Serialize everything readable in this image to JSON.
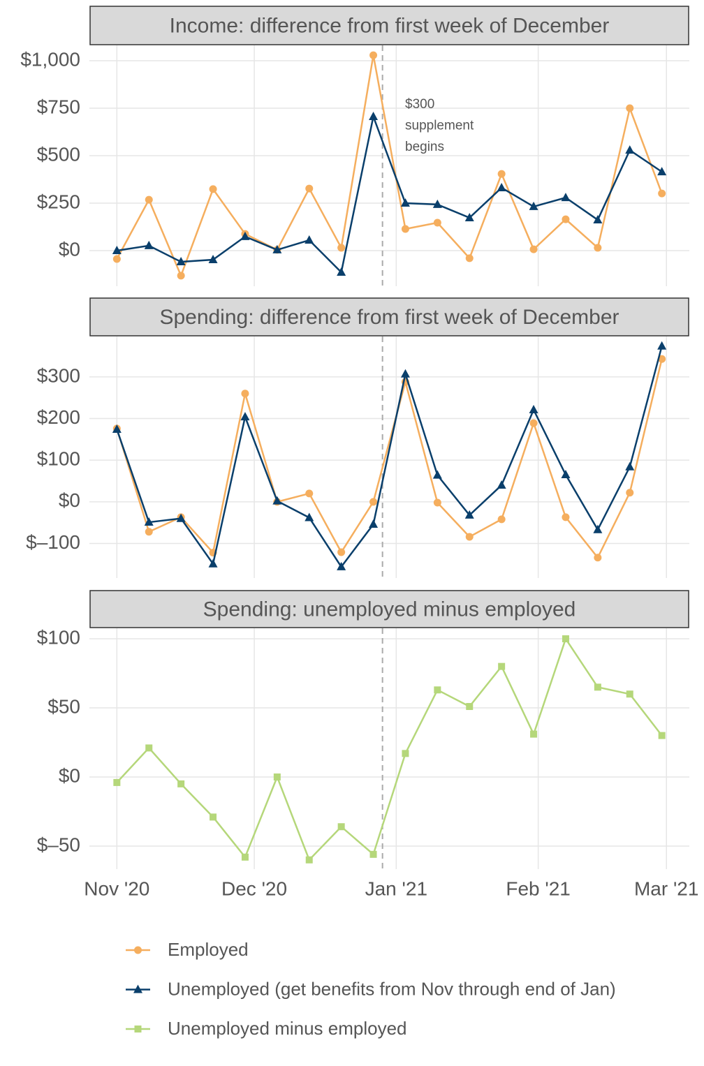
{
  "chart_data": [
    {
      "type": "line",
      "title": "Income: difference from first week of December",
      "x": [
        "2020-11-01",
        "2020-11-08",
        "2020-11-15",
        "2020-11-22",
        "2020-11-29",
        "2020-12-06",
        "2020-12-13",
        "2020-12-20",
        "2020-12-27",
        "2021-01-03",
        "2021-01-10",
        "2021-01-17",
        "2021-01-24",
        "2021-01-31",
        "2021-02-07",
        "2021-02-14",
        "2021-02-21",
        "2021-02-28"
      ],
      "xlim": [
        "2020-10-26",
        "2021-03-06"
      ],
      "ylim": [
        -187.5,
        1081
      ],
      "yticks": [
        {
          "value": 0,
          "label": "$0"
        },
        {
          "value": 250,
          "label": "$250"
        },
        {
          "value": 500,
          "label": "$500"
        },
        {
          "value": 750,
          "label": "$750"
        },
        {
          "value": 1000,
          "label": "$1,000"
        }
      ],
      "vline": "2020-12-29",
      "annotation": [
        "$300",
        "supplement",
        "begins"
      ],
      "grid": true,
      "series": [
        {
          "name": "Employed",
          "color": "#f5ae5e",
          "marker": "circle",
          "values": [
            -44,
            268,
            -132,
            324,
            88,
            4,
            327,
            15,
            1029,
            114,
            147,
            -40,
            404,
            7,
            165,
            15,
            750,
            301
          ]
        },
        {
          "name": "Unemployed (get benefits from Nov through end of Jan)",
          "color": "#0a3f6b",
          "marker": "triangle",
          "values": [
            0,
            26,
            -59,
            -48,
            74,
            4,
            55,
            -114,
            706,
            250,
            243,
            173,
            331,
            232,
            279,
            162,
            529,
            415
          ]
        }
      ]
    },
    {
      "type": "line",
      "title": "Spending: difference from first week of December",
      "x": [
        "2020-11-01",
        "2020-11-08",
        "2020-11-15",
        "2020-11-22",
        "2020-11-29",
        "2020-12-06",
        "2020-12-13",
        "2020-12-20",
        "2020-12-27",
        "2021-01-03",
        "2021-01-10",
        "2021-01-17",
        "2021-01-24",
        "2021-01-31",
        "2021-02-07",
        "2021-02-14",
        "2021-02-21",
        "2021-02-28"
      ],
      "xlim": [
        "2020-10-26",
        "2021-03-06"
      ],
      "ylim": [
        -183,
        397
      ],
      "yticks": [
        {
          "value": -100,
          "label": "$–100"
        },
        {
          "value": 0,
          "label": "$0"
        },
        {
          "value": 100,
          "label": "$100"
        },
        {
          "value": 200,
          "label": "$200"
        },
        {
          "value": 300,
          "label": "$300"
        }
      ],
      "vline": "2020-12-29",
      "grid": true,
      "series": [
        {
          "color": "#f5ae5e",
          "marker": "circle",
          "values": [
            176,
            -72,
            -37,
            -122,
            260,
            0,
            20,
            -121,
            0,
            288,
            -2,
            -84,
            -42,
            189,
            -37,
            -134,
            22,
            343
          ]
        },
        {
          "color": "#0a3f6b",
          "marker": "triangle",
          "values": [
            174,
            -49,
            -40,
            -149,
            204,
            2,
            -38,
            -156,
            -54,
            307,
            64,
            -32,
            40,
            221,
            65,
            -67,
            84,
            374
          ]
        }
      ]
    },
    {
      "type": "line",
      "title": "Spending: unemployed minus employed",
      "x": [
        "2020-11-01",
        "2020-11-08",
        "2020-11-15",
        "2020-11-22",
        "2020-11-29",
        "2020-12-06",
        "2020-12-13",
        "2020-12-20",
        "2020-12-27",
        "2021-01-03",
        "2021-01-10",
        "2021-01-17",
        "2021-01-24",
        "2021-01-31",
        "2021-02-07",
        "2021-02-14",
        "2021-02-21",
        "2021-02-28"
      ],
      "xlim": [
        "2020-10-26",
        "2021-03-06"
      ],
      "ylim": [
        -66.7,
        107.6
      ],
      "yticks": [
        {
          "value": -50,
          "label": "$–50"
        },
        {
          "value": 0,
          "label": "$0"
        },
        {
          "value": 50,
          "label": "$50"
        },
        {
          "value": 100,
          "label": "$100"
        }
      ],
      "xticks": [
        {
          "value": "2020-11-01",
          "label": "Nov '20"
        },
        {
          "value": "2020-12-01",
          "label": "Dec '20"
        },
        {
          "value": "2021-01-01",
          "label": "Jan '21"
        },
        {
          "value": "2021-02-01",
          "label": "Feb '21"
        },
        {
          "value": "2021-03-01",
          "label": "Mar '21"
        }
      ],
      "vline": "2020-12-29",
      "grid": true,
      "series": [
        {
          "name": "Unemployed minus employed",
          "color": "#b5d77a",
          "marker": "square",
          "values": [
            -4,
            21,
            -5,
            -29,
            -58,
            0,
            -60,
            -36,
            -56,
            17,
            63,
            51,
            80,
            31,
            100,
            65,
            60,
            30
          ]
        }
      ]
    }
  ]
}
